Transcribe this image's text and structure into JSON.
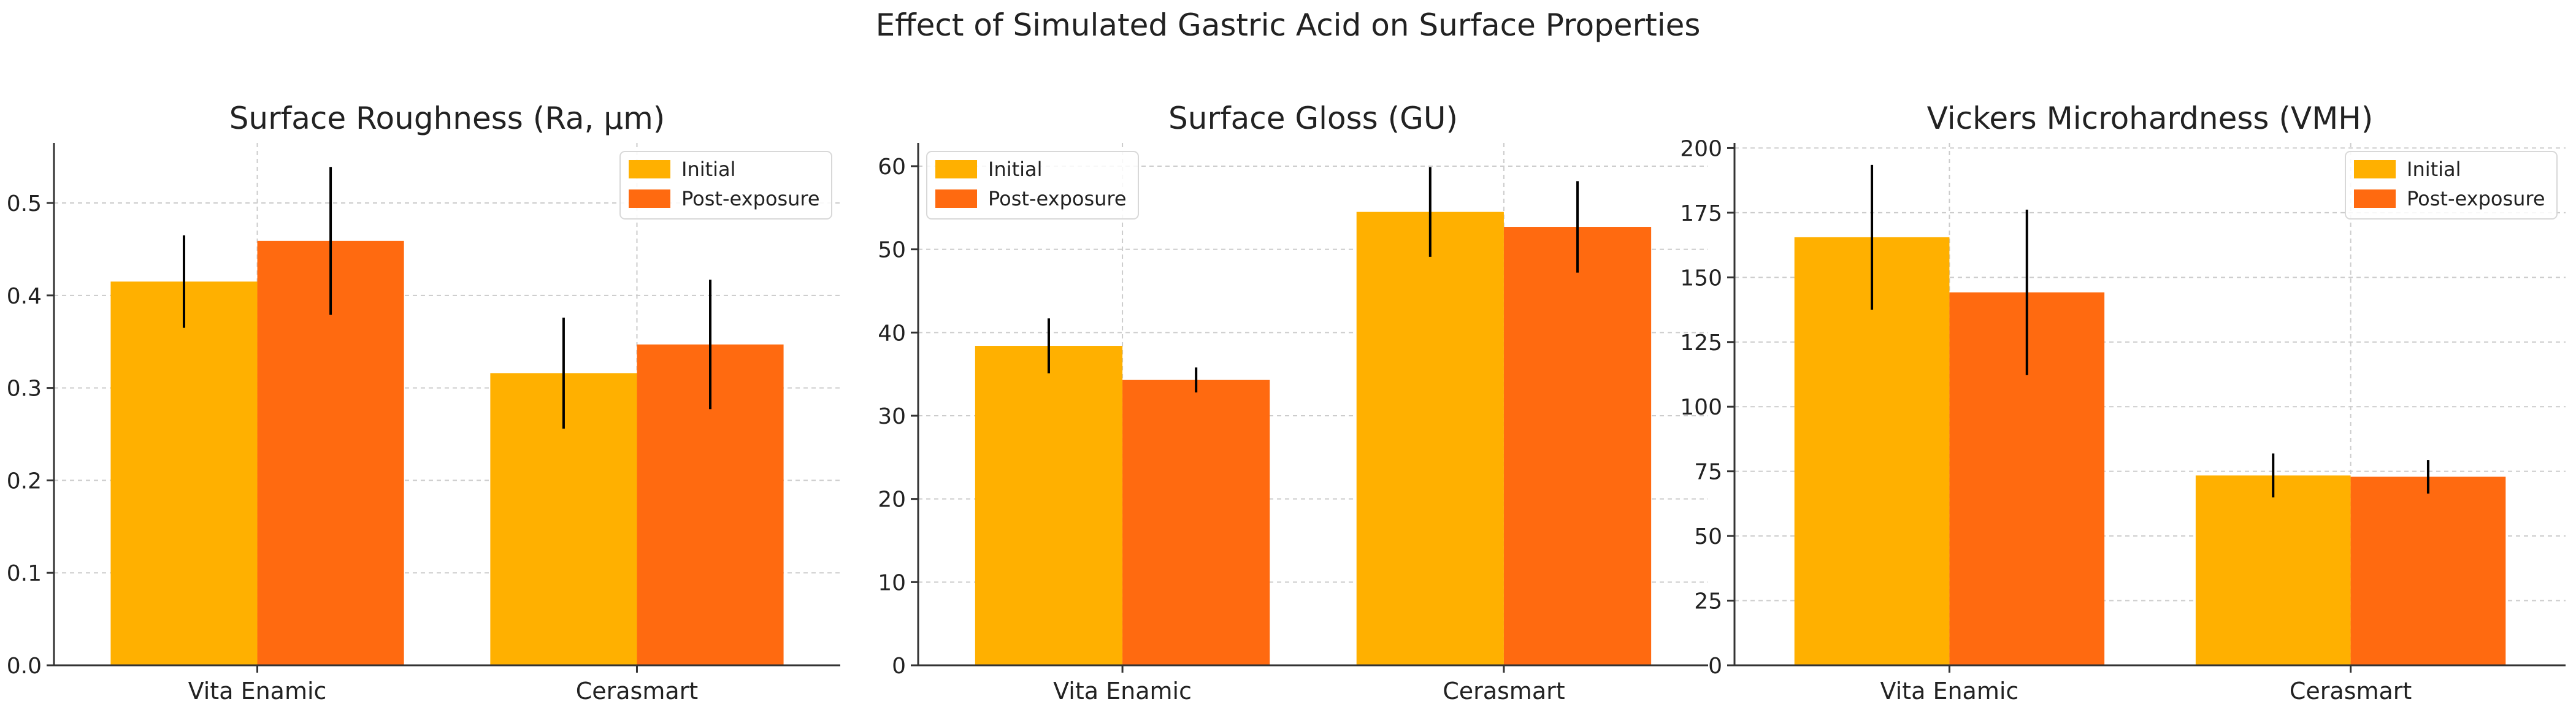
{
  "figure_title": "Effect of Simulated Gastric Acid on Surface Properties",
  "colors": {
    "initial": "#FFB000",
    "post": "#FF6A10",
    "error": "#000000",
    "grid": "#cccccc",
    "axis": "#333333"
  },
  "chart_data": [
    {
      "type": "bar",
      "title": "Surface Roughness (Ra, µm)",
      "categories": [
        "Vita Enamic",
        "Cerasmart"
      ],
      "series": [
        {
          "name": "Initial",
          "values": [
            0.415,
            0.316
          ],
          "errors": [
            0.05,
            0.06
          ]
        },
        {
          "name": "Post-exposure",
          "values": [
            0.459,
            0.347
          ],
          "errors": [
            0.08,
            0.07
          ]
        }
      ],
      "yticks": [
        0.0,
        0.1,
        0.2,
        0.3,
        0.4,
        0.5
      ],
      "ytick_labels": [
        "0.0",
        "0.1",
        "0.2",
        "0.3",
        "0.4",
        "0.5"
      ],
      "ylim": [
        0,
        0.565
      ],
      "legend": [
        "Initial",
        "Post-exposure"
      ],
      "legend_position": "top-right",
      "grid": true
    },
    {
      "type": "bar",
      "title": "Surface Gloss (GU)",
      "categories": [
        "Vita Enamic",
        "Cerasmart"
      ],
      "series": [
        {
          "name": "Initial",
          "values": [
            38.4,
            54.5
          ],
          "errors": [
            3.3,
            5.4
          ]
        },
        {
          "name": "Post-exposure",
          "values": [
            34.3,
            52.7
          ],
          "errors": [
            1.5,
            5.5
          ]
        }
      ],
      "yticks": [
        0,
        10,
        20,
        30,
        40,
        50,
        60
      ],
      "ytick_labels": [
        "0",
        "10",
        "20",
        "30",
        "40",
        "50",
        "60"
      ],
      "ylim": [
        0,
        62.8
      ],
      "legend": [
        "Initial",
        "Post-exposure"
      ],
      "legend_position": "top-left",
      "grid": true
    },
    {
      "type": "bar",
      "title": "Vickers Microhardness (VMH)",
      "categories": [
        "Vita Enamic",
        "Cerasmart"
      ],
      "series": [
        {
          "name": "Initial",
          "values": [
            165.5,
            73.4
          ],
          "errors": [
            28,
            8.5
          ]
        },
        {
          "name": "Post-exposure",
          "values": [
            144.2,
            72.9
          ],
          "errors": [
            32,
            6.5
          ]
        }
      ],
      "yticks": [
        0,
        25,
        50,
        75,
        100,
        125,
        150,
        175,
        200
      ],
      "ytick_labels": [
        "0",
        "25",
        "50",
        "75",
        "100",
        "125",
        "150",
        "175",
        "200"
      ],
      "ylim": [
        0,
        202
      ],
      "legend": [
        "Initial",
        "Post-exposure"
      ],
      "legend_position": "top-right",
      "grid": true
    }
  ]
}
